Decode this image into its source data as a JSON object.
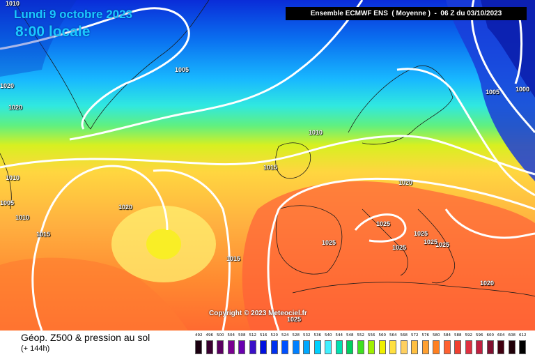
{
  "header": {
    "date": "Lundi 9 octobre 2023",
    "local_time": "8:00 locale",
    "run_info": "Ensemble ECMWF ENS  ( Moyenne )  -  06 Z du 03/10/2023"
  },
  "copyright": "Copyright © 2023 Meteociel.fr",
  "footer": {
    "title": "Géop. Z500 & pression au sol",
    "subtitle": "(+ 144h)"
  },
  "isobar_labels": [
    "1010",
    "1005",
    "1020",
    "1020",
    "1010",
    "1005",
    "1010",
    "1020",
    "1015",
    "1015",
    "1010",
    "1015",
    "1025",
    "1020",
    "1025",
    "1025",
    "1025",
    "1025",
    "1025",
    "1020",
    "1025",
    "1005",
    "1000"
  ],
  "legend": {
    "values": [
      "492",
      "496",
      "500",
      "504",
      "508",
      "512",
      "516",
      "520",
      "524",
      "528",
      "532",
      "536",
      "540",
      "544",
      "548",
      "552",
      "556",
      "560",
      "564",
      "568",
      "572",
      "576",
      "580",
      "584",
      "588",
      "592",
      "596",
      "600",
      "604",
      "608",
      "612"
    ],
    "colors": [
      "#1a0010",
      "#3a0030",
      "#5a0060",
      "#7a0090",
      "#6a00b0",
      "#3a10c8",
      "#0010e0",
      "#0030f0",
      "#0050ff",
      "#0080ff",
      "#00a8ff",
      "#00d0ff",
      "#40f0ff",
      "#00e0b0",
      "#00d060",
      "#40e020",
      "#a0f000",
      "#f0f000",
      "#ffe040",
      "#ffd060",
      "#ffc040",
      "#ffa030",
      "#ff8020",
      "#ff6030",
      "#f04030",
      "#e03040",
      "#c02040",
      "#801030",
      "#400010",
      "#200008",
      "#000000"
    ]
  }
}
